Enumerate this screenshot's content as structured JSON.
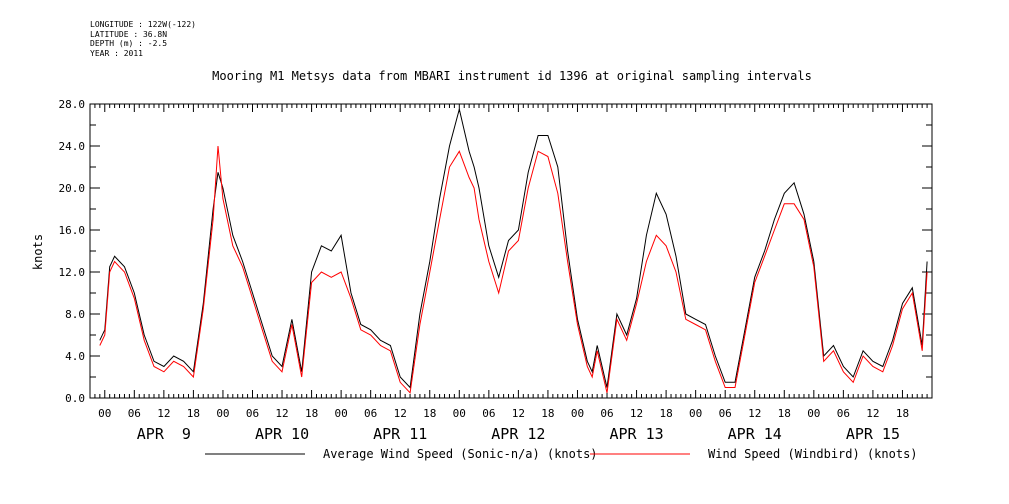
{
  "meta": {
    "longitude": "LONGITUDE : 122W(-122)",
    "latitude": "LATITUDE : 36.8N",
    "depth": "DEPTH (m) : -2.5",
    "year": "YEAR : 2011"
  },
  "chart_data": {
    "type": "line",
    "title": "Mooring M1 Metsys data from MBARI instrument id 1396 at original sampling intervals",
    "xlabel": "",
    "ylabel": "knots",
    "ylim": [
      0,
      28
    ],
    "xlim_hours": [
      -3,
      168
    ],
    "y_ticks": [
      "0.0",
      "4.0",
      "8.0",
      "12.0",
      "16.0",
      "20.0",
      "24.0",
      "28.0"
    ],
    "hour_tick_labels": [
      "00",
      "06",
      "12",
      "18"
    ],
    "day_labels": [
      "APR  9",
      "APR 10",
      "APR 11",
      "APR 12",
      "APR 13",
      "APR 14",
      "APR 15"
    ],
    "grid": false,
    "legend_position": "bottom",
    "series": [
      {
        "name": "Average Wind Speed (Sonic-n/a) (knots)",
        "color": "#000000",
        "x_hours": [
          -1,
          0,
          1,
          2,
          3,
          4,
          6,
          8,
          10,
          12,
          14,
          16,
          18,
          20,
          22,
          23,
          24,
          26,
          28,
          30,
          32,
          34,
          36,
          38,
          40,
          42,
          44,
          46,
          48,
          50,
          52,
          54,
          56,
          58,
          60,
          62,
          64,
          66,
          68,
          70,
          72,
          74,
          75,
          76,
          78,
          80,
          82,
          84,
          86,
          88,
          90,
          92,
          94,
          96,
          98,
          99,
          100,
          102,
          104,
          106,
          108,
          110,
          112,
          114,
          116,
          118,
          120,
          122,
          124,
          126,
          128,
          130,
          132,
          134,
          136,
          138,
          140,
          142,
          144,
          146,
          148,
          150,
          152,
          154,
          156,
          158,
          160,
          162,
          164,
          166,
          167
        ],
        "values": [
          5.5,
          6.5,
          12.5,
          13.5,
          13.0,
          12.5,
          10.0,
          6.0,
          3.5,
          3.0,
          4.0,
          3.5,
          2.5,
          9.0,
          18.0,
          21.5,
          20.0,
          15.5,
          13.0,
          10.0,
          7.0,
          4.0,
          3.0,
          7.5,
          2.5,
          12.0,
          14.5,
          14.0,
          15.5,
          10.0,
          7.0,
          6.5,
          5.5,
          5.0,
          2.0,
          1.0,
          8.0,
          13.0,
          19.0,
          24.0,
          27.5,
          23.5,
          22.0,
          20.0,
          14.5,
          11.5,
          15.0,
          16.0,
          21.5,
          25.0,
          25.0,
          22.0,
          14.0,
          7.5,
          3.5,
          2.5,
          5.0,
          1.0,
          8.0,
          6.0,
          9.5,
          15.5,
          19.5,
          17.5,
          13.5,
          8.0,
          7.5,
          7.0,
          4.0,
          1.5,
          1.5,
          6.5,
          11.5,
          14.0,
          17.0,
          19.5,
          20.5,
          17.5,
          13.0,
          4.0,
          5.0,
          3.0,
          2.0,
          4.5,
          3.5,
          3.0,
          5.5,
          9.0,
          10.5,
          5.0,
          13.0
        ]
      },
      {
        "name": "Wind Speed (Windbird) (knots)",
        "color": "#ff0000",
        "x_hours": [
          -1,
          0,
          1,
          2,
          3,
          4,
          6,
          8,
          10,
          12,
          14,
          16,
          18,
          20,
          22,
          23,
          24,
          26,
          28,
          30,
          32,
          34,
          36,
          38,
          40,
          42,
          44,
          46,
          48,
          50,
          52,
          54,
          56,
          58,
          60,
          62,
          64,
          66,
          68,
          70,
          72,
          74,
          75,
          76,
          78,
          80,
          82,
          84,
          86,
          88,
          90,
          92,
          94,
          96,
          98,
          99,
          100,
          102,
          104,
          106,
          108,
          110,
          112,
          114,
          116,
          118,
          120,
          122,
          124,
          126,
          128,
          130,
          132,
          134,
          136,
          138,
          140,
          142,
          144,
          146,
          148,
          150,
          152,
          154,
          156,
          158,
          160,
          162,
          164,
          166,
          167
        ],
        "values": [
          5.0,
          6.0,
          12.0,
          13.0,
          12.5,
          12.0,
          9.5,
          5.5,
          3.0,
          2.5,
          3.5,
          3.0,
          2.0,
          8.5,
          17.0,
          24.0,
          19.0,
          14.5,
          12.5,
          9.5,
          6.5,
          3.5,
          2.5,
          7.0,
          2.0,
          11.0,
          12.0,
          11.5,
          12.0,
          9.5,
          6.5,
          6.0,
          5.0,
          4.5,
          1.5,
          0.5,
          7.0,
          12.0,
          17.0,
          22.0,
          23.5,
          21.0,
          20.0,
          17.0,
          13.0,
          10.0,
          14.0,
          15.0,
          20.0,
          23.5,
          23.0,
          19.5,
          13.0,
          7.0,
          3.0,
          2.0,
          4.5,
          0.5,
          7.5,
          5.5,
          9.0,
          13.0,
          15.5,
          14.5,
          12.0,
          7.5,
          7.0,
          6.5,
          3.5,
          1.0,
          1.0,
          6.0,
          11.0,
          13.5,
          16.0,
          18.5,
          18.5,
          17.0,
          12.5,
          3.5,
          4.5,
          2.5,
          1.5,
          4.0,
          3.0,
          2.5,
          5.0,
          8.5,
          10.0,
          4.5,
          12.0
        ]
      }
    ]
  }
}
